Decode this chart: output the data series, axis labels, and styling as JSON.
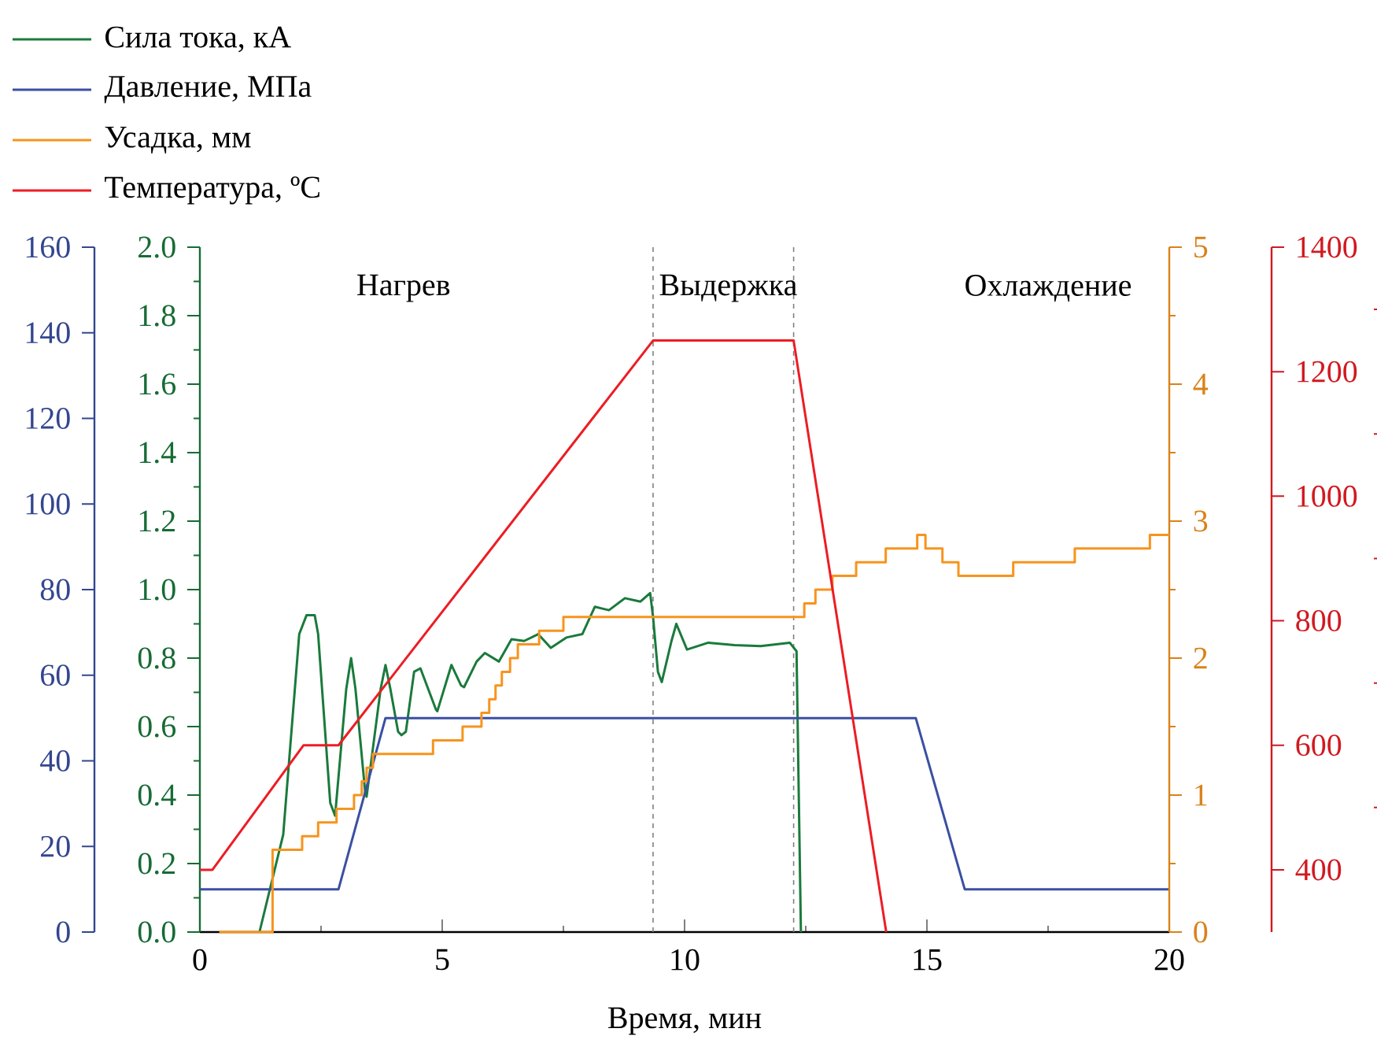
{
  "chart_data": [
    {
      "type": "line",
      "xlabel": "Время, мин",
      "legend": "top left",
      "xlim": [
        0,
        20
      ],
      "xticks": [
        0,
        5,
        10,
        15,
        20
      ],
      "ylim": [
        0,
        2
      ],
      "yticks": [
        {
          "value": 0,
          "label": "0.0"
        },
        0.2,
        0.4,
        0.6,
        0.8,
        {
          "value": 1,
          "label": "1.0"
        },
        1.2,
        1.4,
        1.6,
        1.8,
        {
          "value": 2,
          "label": "2.0"
        }
      ],
      "y2lim": [
        0,
        160
      ],
      "y2ticks": [
        0,
        20,
        40,
        60,
        80,
        100,
        120,
        140,
        160
      ],
      "ref_lines": [
        {
          "axis": "x",
          "value": 9.35,
          "color": "#808080",
          "line_style": "dashed"
        },
        {
          "axis": "x",
          "value": 12.25,
          "color": "#808080",
          "line_style": "dashed"
        }
      ],
      "annotations": [
        "Нагрев",
        "Выдержка",
        "Охлаждение"
      ],
      "series": [
        {
          "name": "Сила тока, кА",
          "color": "#1a7a3c",
          "x": [
            1.23,
            1.72,
            2.05,
            2.2,
            2.37,
            2.44,
            2.69,
            2.79,
            3.02,
            3.12,
            3.21,
            3.41,
            3.44,
            3.73,
            3.83,
            3.93,
            4.09,
            4.16,
            4.25,
            4.42,
            4.55,
            4.87,
            4.9,
            5.19,
            5.39,
            5.45,
            5.71,
            5.88,
            6.17,
            6.43,
            6.69,
            6.98,
            7.24,
            7.56,
            7.89,
            8.15,
            8.44,
            8.77,
            9.09,
            9.29,
            9.35,
            9.45,
            9.53,
            9.73,
            9.83,
            10.05,
            10.49,
            11.03,
            11.57,
            12.17,
            12.31,
            12.4
          ],
          "values": [
            0,
            0.285,
            0.87,
            0.925,
            0.925,
            0.87,
            0.377,
            0.34,
            0.71,
            0.8,
            0.71,
            0.41,
            0.395,
            0.71,
            0.78,
            0.71,
            0.585,
            0.575,
            0.585,
            0.76,
            0.77,
            0.65,
            0.645,
            0.78,
            0.72,
            0.715,
            0.79,
            0.815,
            0.79,
            0.855,
            0.85,
            0.87,
            0.83,
            0.86,
            0.87,
            0.95,
            0.94,
            0.975,
            0.965,
            0.99,
            0.92,
            0.76,
            0.73,
            0.85,
            0.9,
            0.825,
            0.845,
            0.838,
            0.835,
            0.845,
            0.82,
            0
          ]
        },
        {
          "name": "Давление, МПа",
          "color": "#3b4fa3",
          "axis": "y2",
          "x": [
            0,
            2.86,
            3.83,
            14.77,
            15.78,
            20
          ],
          "values": [
            10,
            10,
            50,
            50,
            10,
            10
          ]
        }
      ]
    },
    {
      "type": "line",
      "legend": "top left",
      "tick_labels": "y",
      "xlim": [
        0,
        20
      ],
      "ylim": [
        0,
        5
      ],
      "yticks": [
        0,
        1,
        2,
        3,
        4,
        5
      ],
      "y2lim": [
        300,
        1400
      ],
      "y2ticks": [
        400,
        600,
        800,
        1000,
        1200,
        1400
      ],
      "series": [
        {
          "name": "Усадка, мм",
          "color": "#f7941d",
          "type": "step",
          "x": [
            0.4,
            1.5,
            2.11,
            2.44,
            2.82,
            3.18,
            3.34,
            3.44,
            3.57,
            4.81,
            5.42,
            5.81,
            5.97,
            6.1,
            6.23,
            6.4,
            6.56,
            7.0,
            7.5,
            12.47,
            12.7,
            13.05,
            13.54,
            14.15,
            14.8,
            14.97,
            15.32,
            15.65,
            16.78,
            18.05,
            19.6,
            20
          ],
          "values": [
            0,
            0.6,
            0.7,
            0.8,
            0.9,
            1.0,
            1.1,
            1.2,
            1.3,
            1.4,
            1.5,
            1.6,
            1.7,
            1.8,
            1.9,
            2.0,
            2.1,
            2.2,
            2.3,
            2.4,
            2.5,
            2.6,
            2.7,
            2.8,
            2.9,
            2.8,
            2.7,
            2.6,
            2.7,
            2.8,
            2.9,
            2.9
          ]
        },
        {
          "name": "Температура, ºC",
          "color": "#ed1c24",
          "axis": "y2",
          "x": [
            0,
            0.26,
            2.14,
            2.27,
            2.86,
            9.35,
            12.25,
            14.16
          ],
          "values": [
            400,
            400,
            600,
            600,
            600,
            1250,
            1250,
            300
          ]
        }
      ]
    }
  ]
}
